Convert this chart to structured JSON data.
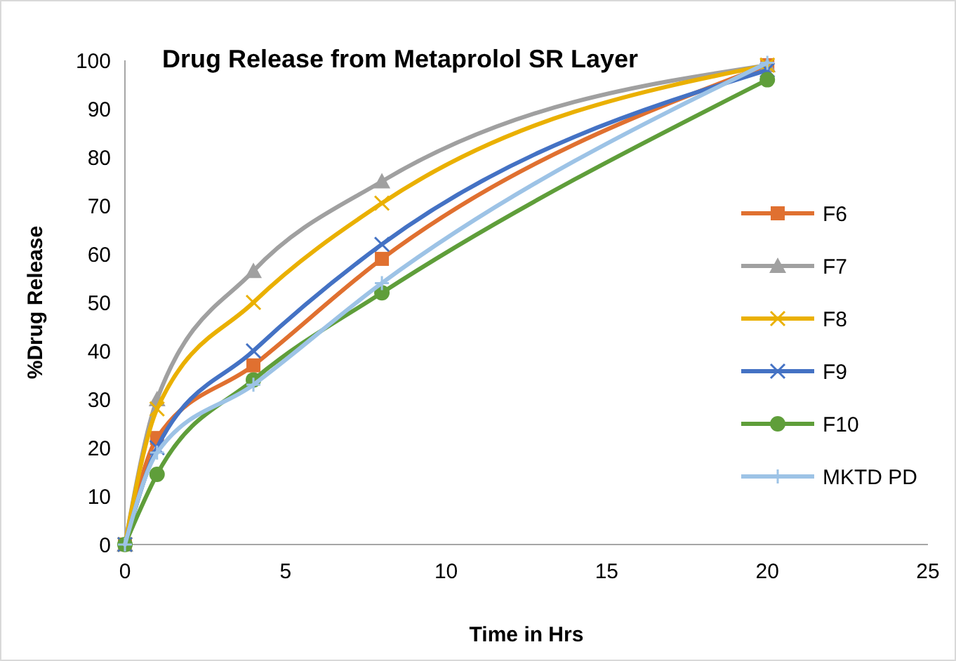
{
  "chart_data": {
    "type": "line",
    "title": "Drug Release from Metaprolol SR Layer",
    "xlabel": "Time in Hrs",
    "ylabel": "%Drug Release",
    "x": [
      0,
      1,
      4,
      8,
      20
    ],
    "xlim": [
      0,
      25
    ],
    "xticks": [
      0,
      5,
      10,
      15,
      20,
      25
    ],
    "ylim": [
      0,
      100
    ],
    "yticks": [
      0,
      10,
      20,
      30,
      40,
      50,
      60,
      70,
      80,
      90,
      100
    ],
    "grid": false,
    "legend": "right",
    "series": [
      {
        "name": "F6",
        "color": "#e07030",
        "marker": "square",
        "values": [
          0,
          22,
          37,
          59,
          99
        ]
      },
      {
        "name": "F7",
        "color": "#a0a0a0",
        "marker": "triangle",
        "values": [
          0,
          30,
          56.5,
          75,
          99
        ]
      },
      {
        "name": "F8",
        "color": "#eab000",
        "marker": "cross",
        "values": [
          0,
          28,
          50,
          70.5,
          99
        ]
      },
      {
        "name": "F9",
        "color": "#4472c4",
        "marker": "cross",
        "values": [
          0,
          20,
          40,
          62,
          98
        ]
      },
      {
        "name": "F10",
        "color": "#5f9e3a",
        "marker": "circle",
        "values": [
          0,
          14.5,
          34,
          52,
          96
        ]
      },
      {
        "name": "MKTD PD",
        "color": "#9dc3e6",
        "marker": "plus",
        "values": [
          0,
          19,
          33,
          54,
          99.5
        ]
      }
    ]
  }
}
